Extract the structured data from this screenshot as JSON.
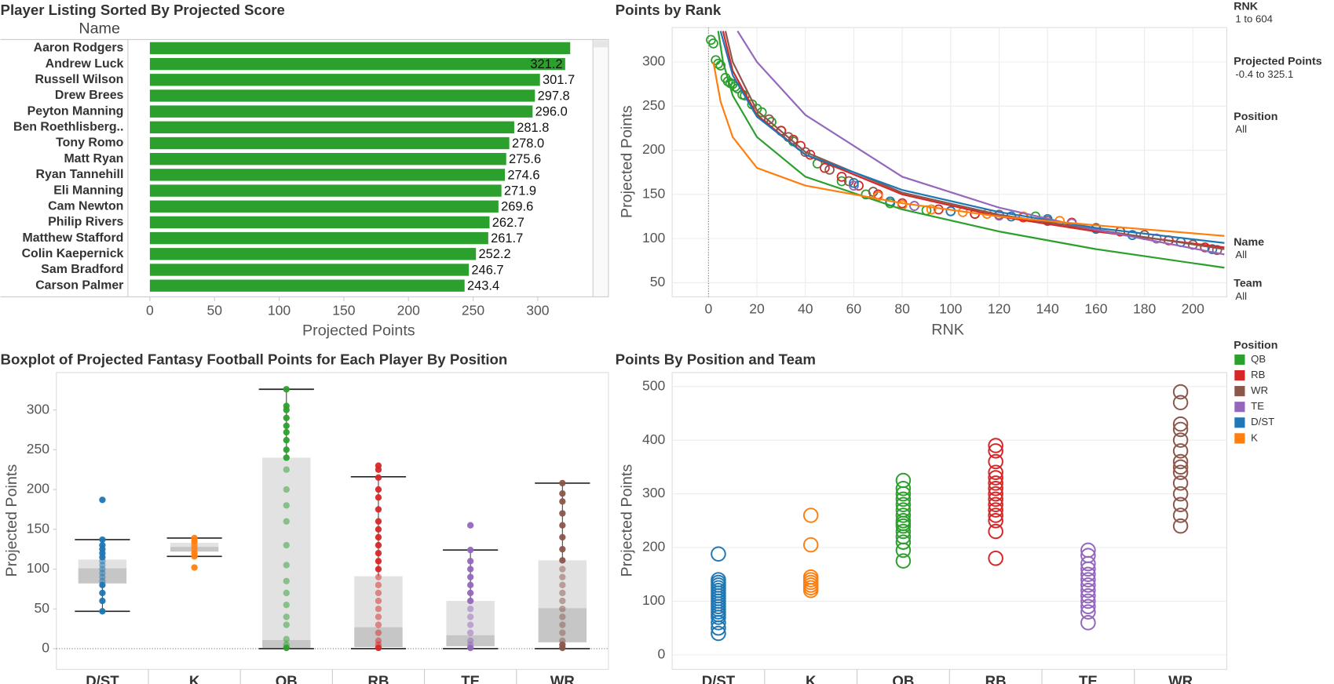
{
  "filters": [
    {
      "label": "RNK",
      "value": "1 to 604"
    },
    {
      "label": "Projected Points",
      "value": "-0.4 to 325.1"
    },
    {
      "label": "Position",
      "value": "All"
    },
    {
      "label": "Name",
      "value": "All"
    },
    {
      "label": "Team",
      "value": "All"
    }
  ],
  "chart_data": [
    {
      "type": "hbar",
      "title": "Player Listing Sorted By Projected Score",
      "header": "Name",
      "x_label": "Projected Points",
      "color": "#2ca02c",
      "categories": [
        "Aaron Rodgers",
        "Andrew Luck",
        "Russell Wilson",
        "Drew Brees",
        "Peyton Manning",
        "Ben Roethlisberg..",
        "Tony Romo",
        "Matt Ryan",
        "Ryan Tannehill",
        "Eli Manning",
        "Cam Newton",
        "Philip Rivers",
        "Matthew Stafford",
        "Colin Kaepernick",
        "Sam Bradford",
        "Carson Palmer"
      ],
      "values": [
        325.1,
        321.2,
        301.7,
        297.8,
        296.0,
        281.8,
        278.0,
        275.6,
        274.6,
        271.9,
        269.6,
        262.7,
        261.7,
        252.2,
        246.7,
        243.4
      ],
      "value_labels": [
        null,
        "321.2",
        "301.7",
        "297.8",
        "296.0",
        "281.8",
        "278.0",
        "275.6",
        "274.6",
        "271.9",
        "269.6",
        "262.7",
        "261.7",
        "252.2",
        "246.7",
        "243.4"
      ],
      "xlim": [
        -17,
        342
      ],
      "xticks": [
        0,
        50,
        100,
        150,
        200,
        250,
        300
      ]
    },
    {
      "type": "scatter",
      "title": "Points by Rank",
      "x_label": "RNK",
      "y_label": "Projected Points",
      "legend_title": "Position",
      "xlim": [
        -15,
        214
      ],
      "xticks": [
        0,
        20,
        40,
        60,
        80,
        100,
        120,
        140,
        160,
        180,
        200
      ],
      "ylim": [
        34,
        339
      ],
      "yticks": [
        50,
        100,
        150,
        200,
        250,
        300
      ],
      "grid": true,
      "series": [
        {
          "name": "QB",
          "color": "#2ca02c",
          "x": [
            1,
            2,
            3,
            4,
            5,
            7,
            8,
            9,
            10,
            11,
            12,
            14,
            15,
            18,
            20,
            22,
            26,
            30,
            35,
            45,
            55,
            65,
            75,
            90,
            110,
            135
          ],
          "values": [
            325,
            321,
            302,
            298,
            296,
            282,
            278,
            276,
            275,
            272,
            270,
            263,
            262,
            252,
            247,
            243,
            232,
            222,
            210,
            185,
            165,
            150,
            140,
            132,
            128,
            125
          ],
          "trend_x": [
            4,
            6,
            10,
            20,
            40,
            80,
            120,
            160,
            213
          ],
          "trend_values": [
            335,
            300,
            262,
            215,
            170,
            133,
            108,
            88,
            67
          ]
        },
        {
          "name": "RB",
          "color": "#d62728",
          "x": [
            30,
            35,
            38,
            42,
            48,
            55,
            62,
            70,
            80,
            95,
            110,
            130,
            150,
            170,
            190,
            205
          ],
          "values": [
            222,
            212,
            205,
            195,
            180,
            170,
            160,
            150,
            140,
            133,
            128,
            124,
            118,
            108,
            98,
            90
          ],
          "trend_x": [
            6,
            10,
            20,
            40,
            80,
            120,
            160,
            213
          ],
          "trend_values": [
            335,
            290,
            240,
            195,
            150,
            125,
            108,
            90
          ]
        },
        {
          "name": "WR",
          "color": "#8c564b",
          "x": [
            25,
            33,
            40,
            50,
            58,
            68,
            85,
            100,
            120,
            140,
            160,
            180,
            200,
            210
          ],
          "values": [
            235,
            215,
            198,
            178,
            165,
            153,
            137,
            131,
            127,
            120,
            112,
            104,
            93,
            87
          ],
          "trend_x": [
            7,
            10,
            20,
            40,
            80,
            120,
            160,
            213
          ],
          "trend_values": [
            335,
            300,
            245,
            198,
            152,
            127,
            110,
            88
          ]
        },
        {
          "name": "TE",
          "color": "#9467bd",
          "x": [
            60,
            85,
            120,
            150,
            185
          ],
          "values": [
            160,
            137,
            126,
            117,
            100
          ],
          "trend_x": [
            12,
            20,
            40,
            80,
            120,
            160,
            213
          ],
          "trend_values": [
            335,
            300,
            240,
            170,
            135,
            110,
            82
          ]
        },
        {
          "name": "D/ST",
          "color": "#1f77b4",
          "x": [
            60,
            75,
            100,
            125,
            140,
            160,
            175,
            195,
            208
          ],
          "values": [
            163,
            142,
            131,
            125,
            122,
            111,
            104,
            96,
            88
          ],
          "trend_x": [
            5,
            10,
            20,
            40,
            80,
            120,
            160,
            213
          ],
          "trend_values": [
            335,
            285,
            238,
            195,
            155,
            130,
            112,
            95
          ]
        },
        {
          "name": "K",
          "color": "#ff7f0e",
          "x": [
            70,
            80,
            92,
            105,
            115,
            130,
            145
          ],
          "values": [
            148,
            138,
            133,
            130,
            128,
            125,
            120
          ],
          "trend_x": [
            2,
            5,
            10,
            20,
            40,
            80,
            120,
            160,
            213
          ],
          "trend_values": [
            300,
            255,
            215,
            180,
            160,
            140,
            125,
            115,
            103
          ]
        }
      ]
    },
    {
      "type": "boxplot",
      "title": "Boxplot of Projected Fantasy Football Points for Each Player By Position",
      "y_label": "Projected Points",
      "categories": [
        "D/ST",
        "K",
        "QB",
        "RB",
        "TE",
        "WR"
      ],
      "colors": [
        "#1f77b4",
        "#ff7f0e",
        "#2ca02c",
        "#d62728",
        "#9467bd",
        "#8c564b"
      ],
      "ylim": [
        -26,
        347
      ],
      "yticks": [
        0,
        50,
        100,
        150,
        200,
        250,
        300
      ],
      "lower_whisker": [
        47,
        116,
        0,
        0,
        0,
        0
      ],
      "q1": [
        82,
        122,
        1,
        2,
        3,
        8
      ],
      "median": [
        101,
        128,
        11,
        27,
        17,
        51
      ],
      "q3": [
        112,
        133,
        240,
        91,
        60,
        111
      ],
      "upper_whisker": [
        137,
        139,
        326,
        216,
        124,
        208
      ],
      "points": [
        [
          187,
          137,
          130,
          125,
          120,
          115,
          110,
          105,
          100,
          95,
          90,
          85,
          80,
          70,
          60,
          47
        ],
        [
          139,
          135,
          132,
          130,
          128,
          126,
          124,
          120,
          116,
          102
        ],
        [
          326,
          305,
          300,
          290,
          280,
          272,
          262,
          250,
          240,
          225,
          200,
          180,
          160,
          130,
          105,
          85,
          70,
          55,
          40,
          30,
          12,
          5,
          1
        ],
        [
          230,
          225,
          215,
          200,
          190,
          175,
          160,
          150,
          140,
          130,
          120,
          110,
          100,
          90,
          80,
          70,
          60,
          50,
          40,
          30,
          20,
          10,
          5,
          1
        ],
        [
          155,
          124,
          110,
          100,
          90,
          80,
          70,
          60,
          50,
          40,
          30,
          20,
          10,
          5,
          1
        ],
        [
          208,
          195,
          185,
          170,
          155,
          140,
          125,
          111,
          100,
          90,
          80,
          70,
          60,
          50,
          40,
          30,
          20,
          10,
          5,
          1
        ]
      ]
    },
    {
      "type": "strip",
      "title": "Points By Position and Team",
      "y_label": "Projected Points",
      "categories": [
        "D/ST",
        "K",
        "QB",
        "RB",
        "TE",
        "WR"
      ],
      "colors": [
        "#1f77b4",
        "#ff7f0e",
        "#2ca02c",
        "#d62728",
        "#9467bd",
        "#8c564b"
      ],
      "ylim": [
        -27,
        526
      ],
      "yticks": [
        0,
        100,
        200,
        300,
        400,
        500
      ],
      "grid": true,
      "values": [
        [
          188,
          140,
          135,
          130,
          125,
          120,
          115,
          110,
          105,
          100,
          95,
          90,
          85,
          80,
          75,
          70,
          60,
          50,
          40
        ],
        [
          260,
          205,
          145,
          140,
          135,
          130,
          125,
          120
        ],
        [
          325,
          310,
          300,
          290,
          280,
          270,
          260,
          250,
          245,
          240,
          230,
          220,
          210,
          195,
          175
        ],
        [
          390,
          380,
          360,
          340,
          330,
          320,
          310,
          300,
          290,
          280,
          270,
          260,
          250,
          230,
          180
        ],
        [
          195,
          185,
          170,
          160,
          150,
          140,
          130,
          120,
          110,
          100,
          90,
          80,
          60
        ],
        [
          490,
          470,
          430,
          420,
          400,
          380,
          360,
          350,
          340,
          320,
          300,
          280,
          260,
          240
        ]
      ]
    }
  ]
}
